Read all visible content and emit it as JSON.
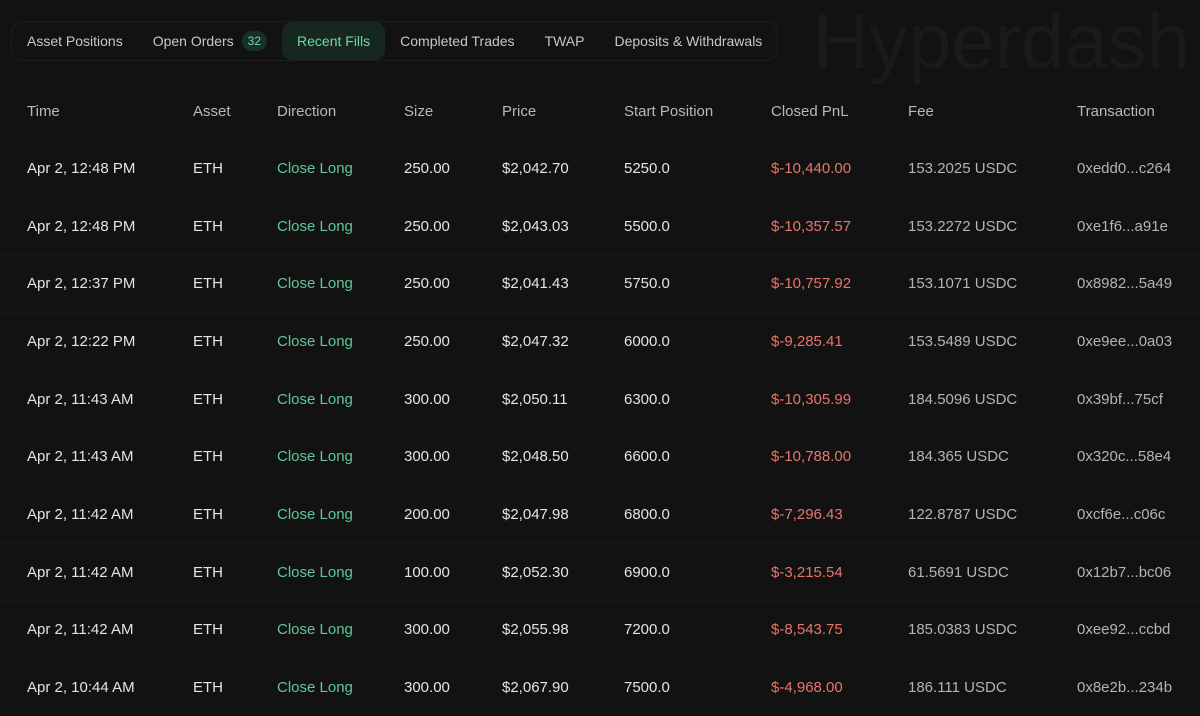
{
  "tabs": [
    {
      "label": "Asset Positions"
    },
    {
      "label": "Open Orders",
      "badge": "32"
    },
    {
      "label": "Recent Fills",
      "active": true
    },
    {
      "label": "Completed Trades"
    },
    {
      "label": "TWAP"
    },
    {
      "label": "Deposits & Withdrawals"
    }
  ],
  "colors": {
    "accent": "#6fd7a3",
    "long": "#5ec996",
    "loss": "#e8756c",
    "background": "#121212"
  },
  "watermark": "Hyperdash",
  "table": {
    "headers": [
      "Time",
      "Asset",
      "Direction",
      "Size",
      "Price",
      "Start Position",
      "Closed PnL",
      "Fee",
      "Transaction"
    ],
    "rows": [
      [
        "Apr 2, 12:48 PM",
        "ETH",
        "Close Long",
        "250.00",
        "$2,042.70",
        "5250.0",
        "$-10,440.00",
        "153.2025 USDC",
        "0xedd0...c264"
      ],
      [
        "Apr 2, 12:48 PM",
        "ETH",
        "Close Long",
        "250.00",
        "$2,043.03",
        "5500.0",
        "$-10,357.57",
        "153.2272 USDC",
        "0xe1f6...a91e"
      ],
      [
        "Apr 2, 12:37 PM",
        "ETH",
        "Close Long",
        "250.00",
        "$2,041.43",
        "5750.0",
        "$-10,757.92",
        "153.1071 USDC",
        "0x8982...5a49"
      ],
      [
        "Apr 2, 12:22 PM",
        "ETH",
        "Close Long",
        "250.00",
        "$2,047.32",
        "6000.0",
        "$-9,285.41",
        "153.5489 USDC",
        "0xe9ee...0a03"
      ],
      [
        "Apr 2, 11:43 AM",
        "ETH",
        "Close Long",
        "300.00",
        "$2,050.11",
        "6300.0",
        "$-10,305.99",
        "184.5096 USDC",
        "0x39bf...75cf"
      ],
      [
        "Apr 2, 11:43 AM",
        "ETH",
        "Close Long",
        "300.00",
        "$2,048.50",
        "6600.0",
        "$-10,788.00",
        "184.365 USDC",
        "0x320c...58e4"
      ],
      [
        "Apr 2, 11:42 AM",
        "ETH",
        "Close Long",
        "200.00",
        "$2,047.98",
        "6800.0",
        "$-7,296.43",
        "122.8787 USDC",
        "0xcf6e...c06c"
      ],
      [
        "Apr 2, 11:42 AM",
        "ETH",
        "Close Long",
        "100.00",
        "$2,052.30",
        "6900.0",
        "$-3,215.54",
        "61.5691 USDC",
        "0x12b7...bc06"
      ],
      [
        "Apr 2, 11:42 AM",
        "ETH",
        "Close Long",
        "300.00",
        "$2,055.98",
        "7200.0",
        "$-8,543.75",
        "185.0383 USDC",
        "0xee92...ccbd"
      ],
      [
        "Apr 2, 10:44 AM",
        "ETH",
        "Close Long",
        "300.00",
        "$2,067.90",
        "7500.0",
        "$-4,968.00",
        "186.111 USDC",
        "0x8e2b...234b"
      ]
    ]
  }
}
